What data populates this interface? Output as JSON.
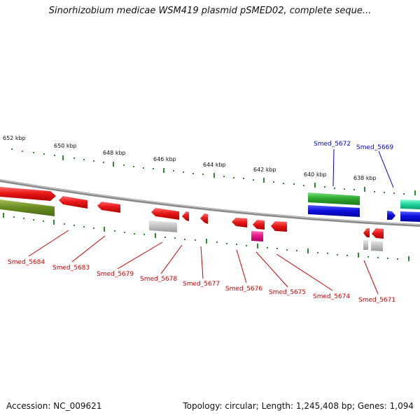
{
  "title": "Sinorhizobium medicae WSM419 plasmid pSMED02, complete seque...",
  "footer": {
    "accession": "Accession: NC_009621",
    "summary": "Topology: circular; Length: 1,245,408 bp; Genes: 1,094"
  },
  "scale": {
    "tick_labels": [
      "652 kbp",
      "650 kbp",
      "648 kbp",
      "646 kbp",
      "644 kbp",
      "642 kbp",
      "640 kbp",
      "638 kbp"
    ]
  },
  "colors": {
    "backbone": "#8a8a8a",
    "tick": "#2e8b2e",
    "red_gene": "#e81818",
    "blue_gene": "#1010e0",
    "green_gene": "#2eaa2e",
    "olive_gene": "#6b8e23",
    "gray_gene": "#b8b8b8",
    "pink_gene": "#e8188c",
    "teal_gene": "#20d8a0",
    "red_label": "#cc0000",
    "blue_label": "#0000cc"
  },
  "labels": {
    "top": [
      "Smed_5672",
      "Smed_5669"
    ],
    "bottom": [
      "Smed_5684",
      "Smed_5683",
      "Smed_5679",
      "Smed_5678",
      "Smed_5677",
      "Smed_5676",
      "Smed_5675",
      "Smed_5674",
      "Smed_5671"
    ]
  }
}
